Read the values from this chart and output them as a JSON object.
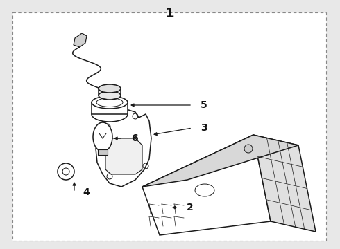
{
  "title_number": "1",
  "bg_color": "#e8e8e8",
  "diagram_bg": "#ffffff",
  "line_color": "#1a1a1a",
  "text_color": "#111111",
  "fig_width": 4.9,
  "fig_height": 3.6,
  "dpi": 100
}
